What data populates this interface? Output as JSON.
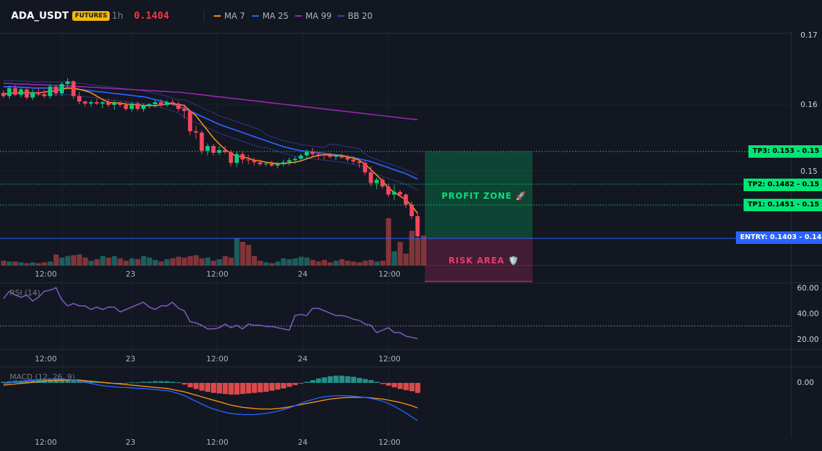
{
  "header": {
    "symbol": "ADA_USDT",
    "badge": "FUTURES",
    "interval": "1h",
    "price": "0.1404",
    "legend": [
      {
        "label": "MA 7",
        "color": "#f7931a"
      },
      {
        "label": "MA 25",
        "color": "#2962ff"
      },
      {
        "label": "MA 99",
        "color": "#9c27b0"
      },
      {
        "label": "BB 20",
        "color": "#1e3a8a"
      }
    ]
  },
  "price_axis": {
    "ticks": [
      "0.17",
      "0.16",
      "0.15"
    ]
  },
  "levels": {
    "tp3": {
      "label": "TP3: 0.153",
      "axis": "0.15",
      "color": "#00e676"
    },
    "tp2": {
      "label": "TP2: 0.1482",
      "axis": "0.15",
      "color": "#00e676"
    },
    "tp1": {
      "label": "TP1: 0.1451",
      "axis": "0.15",
      "color": "#00e676"
    },
    "entry": {
      "label": "ENTRY: 0.1403",
      "axis": "0.14",
      "color": "#2962ff"
    }
  },
  "zones": {
    "profit": "PROFIT ZONE 🚀",
    "risk": "RISK AREA 🛡️"
  },
  "time_axis": {
    "labels": [
      "12:00",
      "23",
      "12:00",
      "24",
      "12:00"
    ]
  },
  "rsi": {
    "title": "RSI (14)",
    "ticks": [
      "60.00",
      "40.00",
      "20.00"
    ]
  },
  "macd": {
    "title": "MACD (12, 26, 9)",
    "ticks": [
      "0.00"
    ]
  },
  "chart_data": {
    "type": "candlestick",
    "candles": [
      [
        0.1617,
        0.1621,
        0.1609,
        0.1612
      ],
      [
        0.1612,
        0.1628,
        0.1608,
        0.1624
      ],
      [
        0.1624,
        0.1628,
        0.1612,
        0.1614
      ],
      [
        0.1614,
        0.1625,
        0.161,
        0.1622
      ],
      [
        0.1622,
        0.1624,
        0.1607,
        0.161
      ],
      [
        0.161,
        0.1622,
        0.1606,
        0.1618
      ],
      [
        0.1618,
        0.1625,
        0.1612,
        0.1615
      ],
      [
        0.1615,
        0.1622,
        0.1609,
        0.1612
      ],
      [
        0.1612,
        0.163,
        0.1608,
        0.1626
      ],
      [
        0.1626,
        0.1628,
        0.1612,
        0.1616
      ],
      [
        0.1616,
        0.1633,
        0.1612,
        0.163
      ],
      [
        0.163,
        0.1639,
        0.1622,
        0.1634
      ],
      [
        0.1634,
        0.1636,
        0.1608,
        0.1612
      ],
      [
        0.1612,
        0.1618,
        0.16,
        0.1604
      ],
      [
        0.1604,
        0.1606,
        0.1596,
        0.1601
      ],
      [
        0.1601,
        0.1606,
        0.1596,
        0.1603
      ],
      [
        0.1603,
        0.1608,
        0.1599,
        0.1601
      ],
      [
        0.1601,
        0.1605,
        0.1594,
        0.1603
      ],
      [
        0.1603,
        0.1608,
        0.1596,
        0.1599
      ],
      [
        0.1599,
        0.1606,
        0.1592,
        0.1602
      ],
      [
        0.1602,
        0.1604,
        0.1596,
        0.1599
      ],
      [
        0.1599,
        0.1604,
        0.159,
        0.1593
      ],
      [
        0.1593,
        0.1603,
        0.1589,
        0.1601
      ],
      [
        0.1601,
        0.1604,
        0.159,
        0.1593
      ],
      [
        0.1593,
        0.1601,
        0.1589,
        0.1598
      ],
      [
        0.1598,
        0.1602,
        0.1594,
        0.16
      ],
      [
        0.16,
        0.1606,
        0.1595,
        0.1603
      ],
      [
        0.1603,
        0.1607,
        0.1596,
        0.1599
      ],
      [
        0.1599,
        0.1606,
        0.1596,
        0.1603
      ],
      [
        0.1603,
        0.1607,
        0.1598,
        0.1601
      ],
      [
        0.1601,
        0.1604,
        0.1589,
        0.1593
      ],
      [
        0.1593,
        0.16,
        0.1579,
        0.159
      ],
      [
        0.159,
        0.1592,
        0.1554,
        0.156
      ],
      [
        0.156,
        0.1568,
        0.1548,
        0.1558
      ],
      [
        0.1558,
        0.1561,
        0.1526,
        0.1531
      ],
      [
        0.1531,
        0.1542,
        0.1524,
        0.1538
      ],
      [
        0.1538,
        0.1541,
        0.1524,
        0.1528
      ],
      [
        0.1528,
        0.1538,
        0.1524,
        0.1532
      ],
      [
        0.1532,
        0.1538,
        0.1526,
        0.1529
      ],
      [
        0.1529,
        0.1532,
        0.1508,
        0.1513
      ],
      [
        0.1513,
        0.153,
        0.1507,
        0.1526
      ],
      [
        0.1526,
        0.153,
        0.1512,
        0.1518
      ],
      [
        0.1518,
        0.1525,
        0.1511,
        0.1517
      ],
      [
        0.1517,
        0.1521,
        0.1509,
        0.1514
      ],
      [
        0.1514,
        0.1518,
        0.1508,
        0.1511
      ],
      [
        0.1511,
        0.1515,
        0.1508,
        0.1512
      ],
      [
        0.1512,
        0.1516,
        0.1507,
        0.1509
      ],
      [
        0.1509,
        0.1514,
        0.1505,
        0.1511
      ],
      [
        0.1511,
        0.1518,
        0.1508,
        0.1514
      ],
      [
        0.1514,
        0.1521,
        0.1509,
        0.1517
      ],
      [
        0.1517,
        0.1522,
        0.1512,
        0.1519
      ],
      [
        0.1519,
        0.1527,
        0.1516,
        0.1524
      ],
      [
        0.1524,
        0.1533,
        0.1518,
        0.1529
      ],
      [
        0.1529,
        0.1535,
        0.1522,
        0.1526
      ],
      [
        0.1526,
        0.1529,
        0.1518,
        0.1525
      ],
      [
        0.1525,
        0.1528,
        0.1518,
        0.1524
      ],
      [
        0.1524,
        0.1528,
        0.1519,
        0.1522
      ],
      [
        0.1522,
        0.1526,
        0.1517,
        0.1523
      ],
      [
        0.1523,
        0.1527,
        0.1519,
        0.1521
      ],
      [
        0.1521,
        0.1525,
        0.1514,
        0.1518
      ],
      [
        0.1518,
        0.1523,
        0.1511,
        0.1515
      ],
      [
        0.1515,
        0.1519,
        0.1506,
        0.1513
      ],
      [
        0.1513,
        0.1516,
        0.1495,
        0.1499
      ],
      [
        0.1499,
        0.1508,
        0.1478,
        0.1483
      ],
      [
        0.1483,
        0.1491,
        0.1474,
        0.1488
      ],
      [
        0.1488,
        0.1491,
        0.1475,
        0.1478
      ],
      [
        0.1478,
        0.1482,
        0.1462,
        0.1466
      ],
      [
        0.1466,
        0.148,
        0.1458,
        0.147
      ],
      [
        0.147,
        0.1473,
        0.1462,
        0.1466
      ],
      [
        0.1466,
        0.1468,
        0.1446,
        0.1451
      ],
      [
        0.1451,
        0.1456,
        0.143,
        0.1434
      ],
      [
        0.1434,
        0.144,
        0.14,
        0.1404
      ]
    ],
    "volumes": [
      6,
      5,
      5,
      4,
      3,
      4,
      3,
      4,
      5,
      14,
      10,
      12,
      13,
      14,
      10,
      6,
      8,
      12,
      10,
      12,
      9,
      6,
      9,
      8,
      12,
      10,
      7,
      5,
      8,
      9,
      11,
      10,
      12,
      13,
      9,
      10,
      6,
      8,
      12,
      10,
      34,
      30,
      26,
      12,
      6,
      4,
      3,
      5,
      9,
      8,
      9,
      11,
      10,
      7,
      5,
      7,
      4,
      6,
      8,
      6,
      5,
      4,
      6,
      7,
      5,
      6,
      60,
      18,
      30,
      15,
      44,
      34,
      38
    ],
    "ma7": [
      0.1615,
      0.1616,
      0.1617,
      0.1617,
      0.1617,
      0.1617,
      0.1617,
      0.1618,
      0.1619,
      0.162,
      0.1622,
      0.1624,
      0.1624,
      0.1622,
      0.162,
      0.1617,
      0.1612,
      0.1607,
      0.1603,
      0.1602,
      0.1602,
      0.16,
      0.16,
      0.1599,
      0.1598,
      0.1598,
      0.1598,
      0.1599,
      0.16,
      0.1601,
      0.16,
      0.1598,
      0.159,
      0.1583,
      0.1572,
      0.1561,
      0.155,
      0.1541,
      0.1533,
      0.1527,
      0.1523,
      0.1522,
      0.152,
      0.1517,
      0.1516,
      0.1514,
      0.1513,
      0.1512,
      0.1512,
      0.1513,
      0.1514,
      0.1516,
      0.1519,
      0.1522,
      0.1524,
      0.1525,
      0.1525,
      0.1524,
      0.1524,
      0.1522,
      0.152,
      0.1517,
      0.1511,
      0.1503,
      0.1495,
      0.1486,
      0.1476,
      0.1469,
      0.1464,
      0.1458,
      0.145,
      0.1438
    ],
    "ma25": [
      0.1626,
      0.1626,
      0.1626,
      0.1625,
      0.1625,
      0.1624,
      0.1624,
      0.1624,
      0.1624,
      0.1624,
      0.1624,
      0.1624,
      0.1623,
      0.1622,
      0.1621,
      0.162,
      0.1619,
      0.1618,
      0.1617,
      0.1616,
      0.1615,
      0.1614,
      0.1613,
      0.1612,
      0.1611,
      0.1609,
      0.1607,
      0.1605,
      0.1603,
      0.16,
      0.1597,
      0.1594,
      0.159,
      0.1586,
      0.1582,
      0.1578,
      0.1574,
      0.157,
      0.1567,
      0.1564,
      0.1561,
      0.1558,
      0.1555,
      0.1552,
      0.1549,
      0.1546,
      0.1543,
      0.154,
      0.1537,
      0.1535,
      0.1533,
      0.1531,
      0.153,
      0.1529,
      0.1528,
      0.1527,
      0.1526,
      0.1525,
      0.1524,
      0.1522,
      0.1521,
      0.1519,
      0.1517,
      0.1515,
      0.1512,
      0.1509,
      0.1506,
      0.1503,
      0.15,
      0.1497,
      0.1493,
      0.1489
    ],
    "ma99": [
      0.1631,
      0.1631,
      0.163,
      0.163,
      0.163,
      0.1629,
      0.1629,
      0.1629,
      0.1628,
      0.1628,
      0.1628,
      0.1627,
      0.1627,
      0.1626,
      0.1626,
      0.1625,
      0.1625,
      0.1624,
      0.1624,
      0.1623,
      0.1623,
      0.1622,
      0.1622,
      0.1621,
      0.1621,
      0.162,
      0.162,
      0.1619,
      0.1619,
      0.1618,
      0.1618,
      0.1617,
      0.1616,
      0.1615,
      0.1614,
      0.1613,
      0.1612,
      0.1611,
      0.161,
      0.1609,
      0.1608,
      0.1607,
      0.1606,
      0.1605,
      0.1604,
      0.1603,
      0.1602,
      0.1601,
      0.16,
      0.1599,
      0.1598,
      0.1597,
      0.1596,
      0.1595,
      0.1594,
      0.1593,
      0.1592,
      0.1591,
      0.159,
      0.1589,
      0.1588,
      0.1587,
      0.1586,
      0.1585,
      0.1584,
      0.1583,
      0.1582,
      0.1581,
      0.158,
      0.1579,
      0.1578,
      0.1577
    ],
    "rsi": [
      52,
      58,
      55,
      53,
      55,
      50,
      53,
      58,
      59,
      61,
      51,
      46,
      48,
      46,
      46,
      43,
      45,
      43,
      45,
      45,
      41,
      43,
      45,
      47,
      49,
      45,
      43,
      46,
      46,
      49,
      44,
      42,
      33,
      32,
      30,
      27,
      27,
      28,
      31,
      28,
      30,
      27,
      31,
      30,
      30,
      29,
      29,
      28,
      27,
      26,
      38,
      39,
      38,
      44,
      44,
      42,
      40,
      38,
      38,
      37,
      35,
      34,
      31,
      30,
      24,
      26,
      28,
      24,
      24,
      21,
      20,
      19
    ],
    "rsi_range": [
      10,
      65
    ],
    "macd_hist": [
      0.0002,
      0.0003,
      0.0004,
      0.0004,
      0.0005,
      0.0006,
      0.0006,
      0.0007,
      0.0007,
      0.0008,
      0.0008,
      0.0007,
      0.0006,
      0.0005,
      0.0004,
      0.0003,
      0.0002,
      0.0001,
      0.0,
      0.0,
      -0.0001,
      0.0,
      0.0001,
      0.0001,
      0.0002,
      0.0002,
      0.0003,
      0.0003,
      0.0003,
      0.0002,
      0.0001,
      -0.0003,
      -0.0008,
      -0.0011,
      -0.0014,
      -0.0016,
      -0.0018,
      -0.0019,
      -0.002,
      -0.0021,
      -0.0021,
      -0.002,
      -0.0019,
      -0.0018,
      -0.0017,
      -0.0016,
      -0.0014,
      -0.0012,
      -0.001,
      -0.0007,
      -0.0004,
      -0.0001,
      0.0002,
      0.0005,
      0.0008,
      0.001,
      0.0012,
      0.0013,
      0.0013,
      0.0012,
      0.0011,
      0.0009,
      0.0007,
      0.0005,
      0.0002,
      -0.0002,
      -0.0005,
      -0.0008,
      -0.0011,
      -0.0013,
      -0.0015,
      -0.0018
    ],
    "macd_line": [
      -0.0002,
      0.0,
      0.0002,
      0.0003,
      0.0004,
      0.0005,
      0.0006,
      0.0006,
      0.0007,
      0.0007,
      0.0007,
      0.0006,
      0.0005,
      0.0003,
      0.0001,
      -0.0001,
      -0.0003,
      -0.0005,
      -0.0006,
      -0.0007,
      -0.0008,
      -0.0008,
      -0.0009,
      -0.001,
      -0.001,
      -0.0011,
      -0.0012,
      -0.0013,
      -0.0014,
      -0.0016,
      -0.0019,
      -0.0023,
      -0.0028,
      -0.0033,
      -0.0038,
      -0.0043,
      -0.0047,
      -0.005,
      -0.0053,
      -0.0055,
      -0.0056,
      -0.0057,
      -0.0057,
      -0.0057,
      -0.0056,
      -0.0055,
      -0.0053,
      -0.0051,
      -0.0048,
      -0.0045,
      -0.0041,
      -0.0037,
      -0.0033,
      -0.003,
      -0.0027,
      -0.0025,
      -0.0024,
      -0.0023,
      -0.0023,
      -0.0023,
      -0.0024,
      -0.0025,
      -0.0026,
      -0.0028,
      -0.003,
      -0.0033,
      -0.0037,
      -0.0042,
      -0.0048,
      -0.0054,
      -0.0061,
      -0.0068
    ],
    "macd_signal": [
      -0.0004,
      -0.0003,
      -0.0002,
      -0.0001,
      0.0,
      0.0001,
      0.0002,
      0.0003,
      0.0004,
      0.0004,
      0.0005,
      0.0005,
      0.0005,
      0.0005,
      0.0004,
      0.0003,
      0.0002,
      0.0001,
      0.0,
      -0.0001,
      -0.0002,
      -0.0003,
      -0.0004,
      -0.0005,
      -0.0006,
      -0.0007,
      -0.0008,
      -0.0009,
      -0.001,
      -0.0012,
      -0.0014,
      -0.0016,
      -0.0019,
      -0.0022,
      -0.0025,
      -0.0028,
      -0.0031,
      -0.0034,
      -0.0037,
      -0.004,
      -0.0042,
      -0.0044,
      -0.0045,
      -0.0046,
      -0.0047,
      -0.0047,
      -0.0047,
      -0.0046,
      -0.0045,
      -0.0043,
      -0.0041,
      -0.0039,
      -0.0037,
      -0.0035,
      -0.0033,
      -0.0031,
      -0.0029,
      -0.0028,
      -0.0027,
      -0.0026,
      -0.0026,
      -0.0026,
      -0.0026,
      -0.0027,
      -0.0028,
      -0.0029,
      -0.0031,
      -0.0033,
      -0.0035,
      -0.0038,
      -0.0041,
      -0.0045
    ]
  }
}
